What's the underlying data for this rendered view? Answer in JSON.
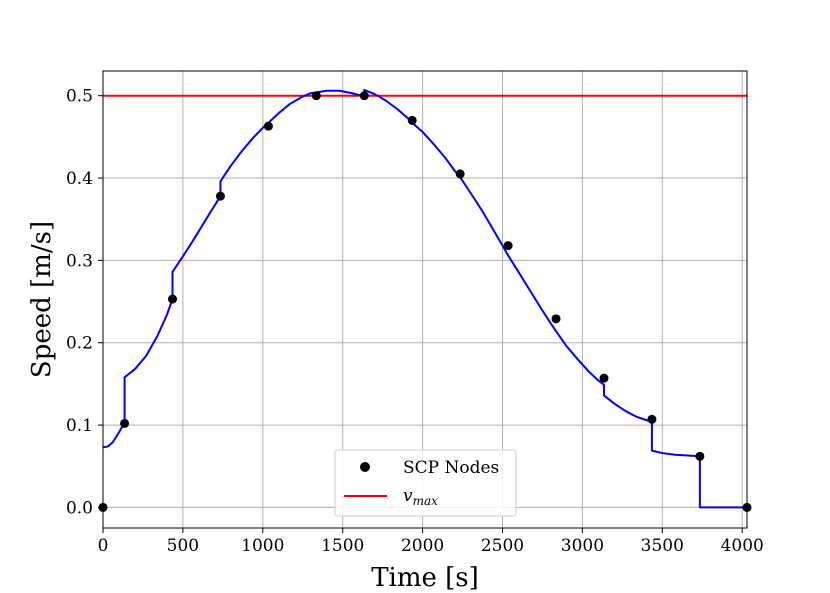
{
  "chart_data": {
    "type": "line",
    "xlabel": "Time [s]",
    "ylabel": "Speed [m/s]",
    "xlim": [
      0,
      4030
    ],
    "ylim": [
      -0.025,
      0.53
    ],
    "xticks": [
      0,
      500,
      1000,
      1500,
      2000,
      2500,
      3000,
      3500,
      4000
    ],
    "xtick_labels": [
      "0",
      "500",
      "1000",
      "1500",
      "2000",
      "2500",
      "3000",
      "3500",
      "4000"
    ],
    "yticks": [
      0.0,
      0.1,
      0.2,
      0.3,
      0.4,
      0.5
    ],
    "ytick_labels": [
      "0.0",
      "0.1",
      "0.2",
      "0.3",
      "0.4",
      "0.5"
    ],
    "grid": true,
    "legend_position": "bottom-center",
    "legend": [
      {
        "label": "SCP Nodes",
        "marker": "dot",
        "color": "#000000"
      },
      {
        "label_main": "v",
        "label_sub": "max",
        "marker": "line",
        "color": "#ff0000"
      }
    ],
    "series": [
      {
        "name": "SCP Nodes",
        "kind": "scatter",
        "color": "#000000",
        "x": [
          0,
          135,
          435,
          735,
          1035,
          1335,
          1635,
          1935,
          2235,
          2535,
          2835,
          3135,
          3435,
          3735,
          4030
        ],
        "y": [
          0.0,
          0.102,
          0.253,
          0.378,
          0.463,
          0.5,
          0.5,
          0.47,
          0.405,
          0.318,
          0.229,
          0.157,
          0.107,
          0.062,
          0.0
        ]
      },
      {
        "name": "v_max",
        "kind": "hline",
        "color": "#ff0000",
        "y": 0.5
      },
      {
        "kind": "line",
        "color": "#0000ff",
        "x": [
          0,
          30,
          60,
          90,
          120,
          135,
          135,
          200,
          270,
          340,
          400,
          435,
          435,
          500,
          560,
          620,
          680,
          735,
          735,
          800,
          870,
          940,
          1000,
          1035,
          1035,
          1100,
          1170,
          1240,
          1300,
          1335,
          1400,
          1480,
          1560,
          1635,
          1635,
          1700,
          1770,
          1840,
          1900,
          1935,
          1935,
          2000,
          2070,
          2140,
          2200,
          2235,
          2235,
          2300,
          2370,
          2440,
          2500,
          2535,
          2535,
          2600,
          2670,
          2740,
          2800,
          2835,
          2835,
          2900,
          2970,
          3040,
          3100,
          3135,
          3135,
          3200,
          3270,
          3340,
          3400,
          3435,
          3435,
          3500,
          3580,
          3660,
          3735,
          3735,
          4030
        ],
        "y": [
          0.073,
          0.074,
          0.079,
          0.088,
          0.098,
          0.102,
          0.158,
          0.168,
          0.184,
          0.208,
          0.234,
          0.253,
          0.286,
          0.305,
          0.323,
          0.342,
          0.361,
          0.378,
          0.396,
          0.415,
          0.433,
          0.449,
          0.461,
          0.467,
          0.467,
          0.479,
          0.49,
          0.498,
          0.503,
          0.504,
          0.506,
          0.506,
          0.503,
          0.499,
          0.507,
          0.502,
          0.494,
          0.484,
          0.474,
          0.467,
          0.467,
          0.456,
          0.441,
          0.425,
          0.409,
          0.401,
          0.401,
          0.382,
          0.361,
          0.338,
          0.318,
          0.306,
          0.306,
          0.286,
          0.264,
          0.242,
          0.224,
          0.214,
          0.214,
          0.196,
          0.18,
          0.165,
          0.154,
          0.149,
          0.136,
          0.126,
          0.117,
          0.11,
          0.106,
          0.104,
          0.069,
          0.066,
          0.064,
          0.063,
          0.062,
          0.0,
          0.0
        ]
      }
    ]
  }
}
